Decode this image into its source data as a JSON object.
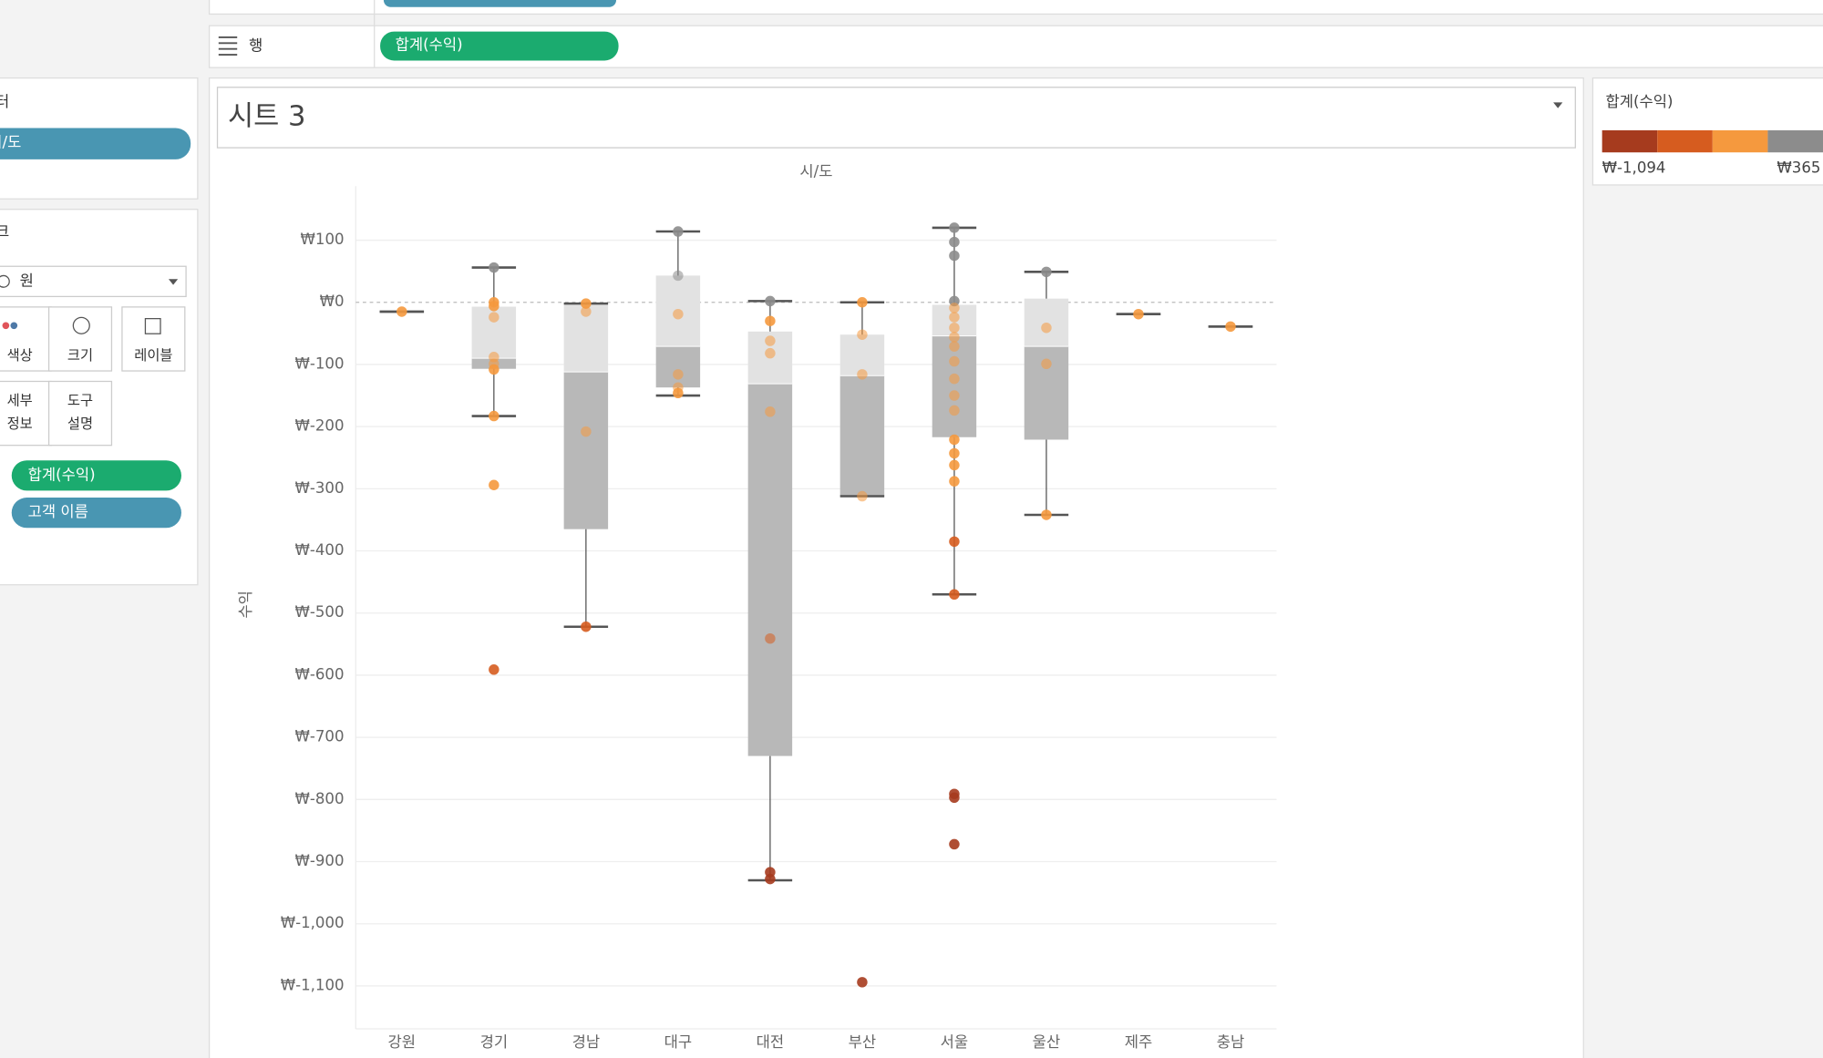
{
  "top_shelf": {
    "rows_label": "행",
    "rows_pill": "합계(수익)"
  },
  "left_panel": {
    "filters_title": "필터",
    "filter_pill": "시/도",
    "marks_title": "마크",
    "mark_type": "원",
    "buttons": [
      [
        "색상"
      ],
      [
        "크기"
      ],
      [
        "레이블"
      ],
      [
        "세부",
        "정보"
      ],
      [
        "도구",
        "설명"
      ]
    ],
    "mark_pills": [
      "합계(수익)",
      "고객 이름"
    ]
  },
  "sheet_title": "시트 3",
  "chart_data": {
    "type": "boxplot",
    "column_header": "시/도",
    "y_label": "수익",
    "categories": [
      "강원",
      "경기",
      "경남",
      "대구",
      "대전",
      "부산",
      "서울",
      "울산",
      "제주",
      "충남"
    ],
    "boxes": [
      {
        "low": -15,
        "q1": -15,
        "median": -15,
        "q3": -15,
        "high": -15
      },
      {
        "low": -183,
        "q1": -107,
        "median": -90,
        "q3": -7,
        "high": 56
      },
      {
        "low": -522,
        "q1": -365,
        "median": -112,
        "q3": -4,
        "high": -2
      },
      {
        "low": -150,
        "q1": -137,
        "median": -71,
        "q3": 43,
        "high": 114
      },
      {
        "low": -930,
        "q1": -730,
        "median": -131,
        "q3": -47,
        "high": 2
      },
      {
        "low": -312,
        "q1": -312,
        "median": -118,
        "q3": -52,
        "high": 0
      },
      {
        "low": -470,
        "q1": -217,
        "median": -54,
        "q3": -4,
        "high": 120
      },
      {
        "low": -342,
        "q1": -221,
        "median": -71,
        "q3": 6,
        "high": 49
      },
      {
        "low": -19,
        "q1": -19,
        "median": -19,
        "q3": -19,
        "high": -19
      },
      {
        "low": -39,
        "q1": -39,
        "median": -39,
        "q3": -39,
        "high": -39
      }
    ],
    "points": [
      [
        -15
      ],
      [
        56,
        0,
        -6,
        -24,
        -88,
        -99,
        -108,
        -183,
        -294,
        -591
      ],
      [
        -2,
        -15,
        -208,
        -522
      ],
      [
        114,
        43,
        -19,
        -116,
        -137,
        -146
      ],
      [
        2,
        -30,
        -62,
        -82,
        -176,
        -541,
        -917,
        -928
      ],
      [
        0,
        -52,
        -116,
        -312,
        -1094
      ],
      [
        120,
        97,
        75,
        2,
        -9,
        -24,
        -41,
        -56,
        -71,
        -95,
        -123,
        -150,
        -174,
        -221,
        -243,
        -262,
        -288,
        -385,
        -470,
        -791,
        -797,
        -872
      ],
      [
        49,
        -41,
        -99,
        -342
      ],
      [
        -19
      ],
      [
        -39
      ]
    ],
    "ylim": [
      -1169,
      187
    ],
    "yticks": [
      {
        "value": 100,
        "label": "₩100"
      },
      {
        "value": 0,
        "label": "₩0"
      },
      {
        "value": -100,
        "label": "₩-100"
      },
      {
        "value": -200,
        "label": "₩-200"
      },
      {
        "value": -300,
        "label": "₩-300"
      },
      {
        "value": -400,
        "label": "₩-400"
      },
      {
        "value": -500,
        "label": "₩-500"
      },
      {
        "value": -600,
        "label": "₩-600"
      },
      {
        "value": -700,
        "label": "₩-700"
      },
      {
        "value": -800,
        "label": "₩-800"
      },
      {
        "value": -900,
        "label": "₩-900"
      },
      {
        "value": -1000,
        "label": "₩-1,000"
      },
      {
        "value": -1100,
        "label": "₩-1,100"
      }
    ],
    "grid": true,
    "box_colors": {
      "upper": "#e2e2e2",
      "lower": "#b8b8b8",
      "whisker": "#555555"
    },
    "legend": {
      "title": "합계(수익)",
      "labels": [
        {
          "value": -1094,
          "label": "₩-1,094"
        },
        {
          "value": 365,
          "label": "₩365"
        }
      ],
      "colors": [
        "#a63b1e",
        "#d65c1f",
        "#f5993e",
        "#8c8c8c"
      ]
    }
  }
}
